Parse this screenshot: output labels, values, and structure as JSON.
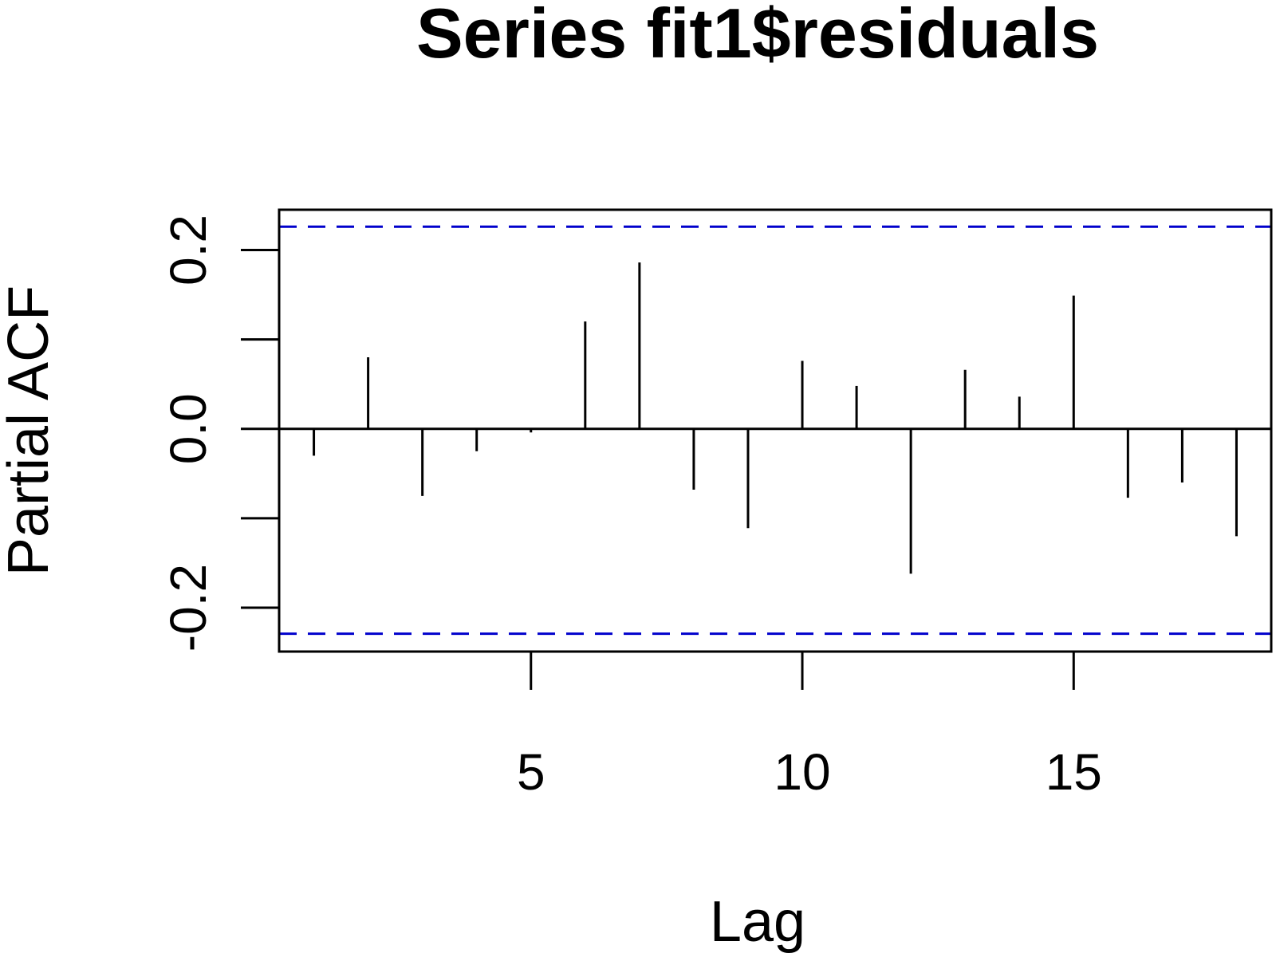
{
  "chart_data": {
    "type": "bar",
    "title": "Series  fit1$residuals",
    "xlabel": "Lag",
    "ylabel": "Partial ACF",
    "x": [
      1,
      2,
      3,
      4,
      5,
      6,
      7,
      8,
      9,
      10,
      11,
      12,
      13,
      14,
      15,
      16,
      17,
      18
    ],
    "values": [
      -0.03,
      0.08,
      -0.075,
      -0.025,
      -0.004,
      0.12,
      0.186,
      -0.068,
      -0.111,
      0.076,
      0.048,
      -0.162,
      0.066,
      0.036,
      0.149,
      -0.077,
      -0.06,
      -0.12
    ],
    "xlim": [
      0.36,
      18.64
    ],
    "ylim": [
      -0.249,
      0.245
    ],
    "xticks": [
      5,
      10,
      15
    ],
    "yticks": [
      -0.2,
      -0.1,
      0.0,
      0.1,
      0.2
    ],
    "ytick_labels": [
      "-0.2",
      "",
      "0.0",
      "",
      "0.2"
    ],
    "confidence_bounds": [
      0.226,
      -0.229
    ],
    "bound_color": "#0000cc",
    "bar_color": "#000000",
    "grid": false,
    "legend": "none"
  }
}
